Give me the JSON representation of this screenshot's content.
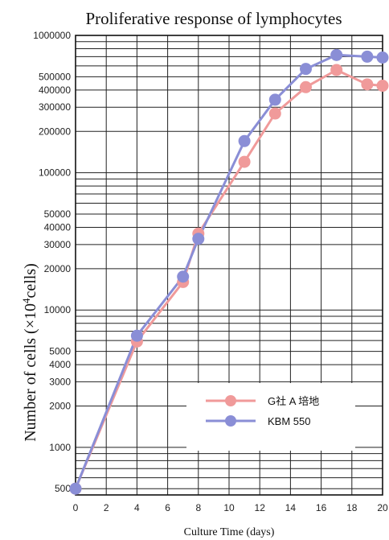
{
  "chart_data": {
    "type": "line",
    "title": "Proliferative response  of  lymphocytes",
    "xlabel": "Culture Time (days)",
    "ylabel": {
      "prefix": "Number of cells  (×10",
      "exponent": "4",
      "suffix": "cells)"
    },
    "x_scale": "linear",
    "y_scale": "log",
    "xlim": [
      0,
      20
    ],
    "ylim": [
      450,
      1000000
    ],
    "x_ticks": [
      0,
      2,
      4,
      6,
      8,
      10,
      12,
      14,
      16,
      18,
      20
    ],
    "x_tick_labels": [
      "0",
      "2",
      "4",
      "6",
      "8",
      "10",
      "12",
      "14",
      "16",
      "18",
      "20"
    ],
    "y_ticks": [
      500,
      1000,
      2000,
      3000,
      4000,
      5000,
      10000,
      20000,
      30000,
      40000,
      50000,
      100000,
      200000,
      300000,
      400000,
      500000,
      1000000
    ],
    "y_tick_labels": [
      "500",
      "1000",
      "2000",
      "3000",
      "4000",
      "5000",
      "10000",
      "20000",
      "30000",
      "40000",
      "50000",
      "100000",
      "200000",
      "300000",
      "400000",
      "500000",
      "1000000"
    ],
    "grid": true,
    "legend_position": "lower-right",
    "series": [
      {
        "name": "G社 A 培地",
        "color": "#f09a9a",
        "x": [
          0,
          4,
          7,
          8,
          11,
          13,
          15,
          17,
          19,
          20
        ],
        "y": [
          500,
          5900,
          16000,
          36000,
          120000,
          270000,
          420000,
          560000,
          440000,
          430000
        ]
      },
      {
        "name": "KBM 550",
        "color": "#8a8ed6",
        "x": [
          0,
          4,
          7,
          8,
          11,
          13,
          15,
          17,
          19,
          20
        ],
        "y": [
          500,
          6500,
          17500,
          33000,
          170000,
          340000,
          570000,
          720000,
          700000,
          690000
        ]
      }
    ]
  }
}
